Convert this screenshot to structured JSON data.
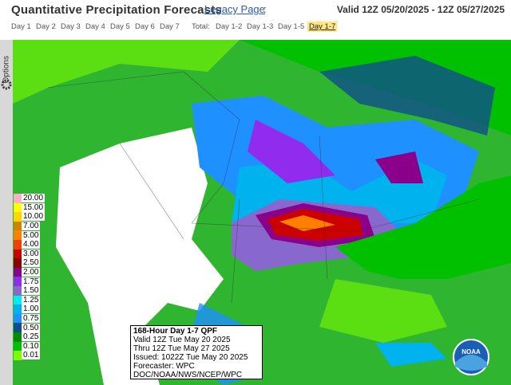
{
  "header": {
    "title": "Quantitative Precipitation Forecasts",
    "link": "Legacy Page",
    "separator": ":",
    "valid": "Valid 12Z 05/20/2025 - 12Z 05/27/2025"
  },
  "tabs": {
    "days": [
      "Day 1",
      "Day 2",
      "Day 3",
      "Day 4",
      "Day 5",
      "Day 6",
      "Day 7"
    ],
    "total_label": "Total:",
    "totals": [
      "Day 1-2",
      "Day 1-3",
      "Day 1-5",
      "Day 1-7"
    ],
    "selected": 3
  },
  "sidebar": {
    "label": "Options"
  },
  "legend": {
    "items": [
      {
        "label": "20.00",
        "color": "#ffaec9"
      },
      {
        "label": "15.00",
        "color": "#ffff00"
      },
      {
        "label": "10.00",
        "color": "#ffd700"
      },
      {
        "label": "7.00",
        "color": "#cd8500"
      },
      {
        "label": "5.00",
        "color": "#ff7f00"
      },
      {
        "label": "4.00",
        "color": "#ee4000"
      },
      {
        "label": "3.00",
        "color": "#cd0000"
      },
      {
        "label": "2.50",
        "color": "#8b0000"
      },
      {
        "label": "2.00",
        "color": "#8b008b"
      },
      {
        "label": "1.75",
        "color": "#912cee"
      },
      {
        "label": "1.50",
        "color": "#8968cd"
      },
      {
        "label": "1.25",
        "color": "#00eeee"
      },
      {
        "label": "1.00",
        "color": "#00b2ee"
      },
      {
        "label": "0.75",
        "color": "#1e90ff"
      },
      {
        "label": "0.50",
        "color": "#104e8b"
      },
      {
        "label": "0.25",
        "color": "#008b00"
      },
      {
        "label": "0.10",
        "color": "#00c000"
      },
      {
        "label": "0.01",
        "color": "#7cfc00"
      }
    ]
  },
  "info": {
    "lines": [
      "168-Hour Day 1-7 QPF",
      "Valid 12Z Tue May 20 2025",
      "Thru 12Z Tue May 27 2025",
      "Issued: 1022Z Tue May 20 2025",
      "Forecaster: WPC",
      "DOC/NOAA/NWS/NCEP/WPC"
    ]
  },
  "logo": {
    "text": "NOAA"
  }
}
